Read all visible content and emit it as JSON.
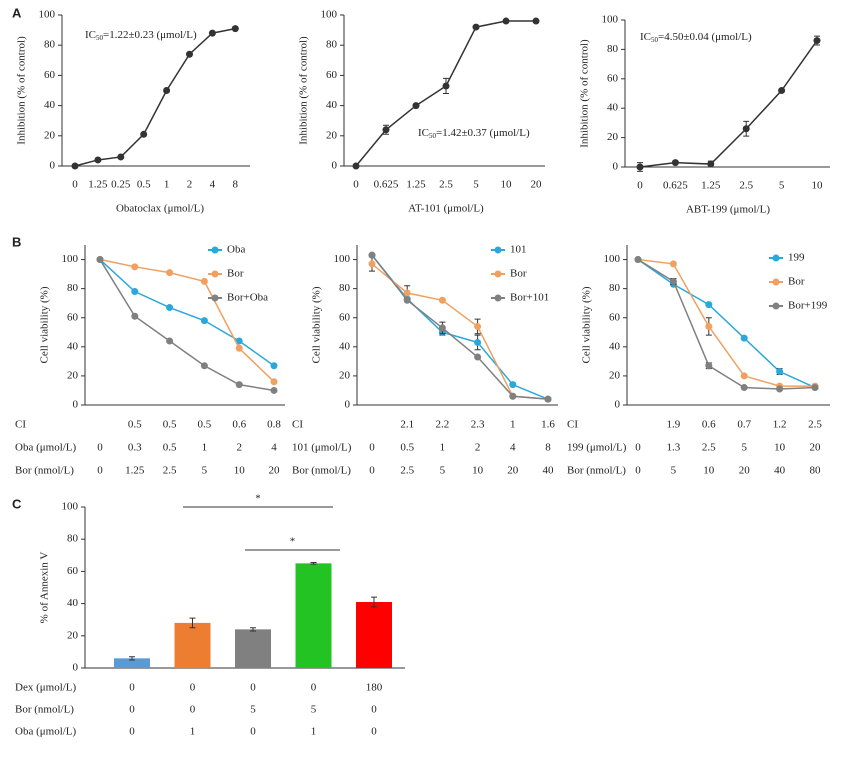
{
  "panels": [
    "A",
    "B",
    "C"
  ],
  "chart_data": [
    {
      "type": "line",
      "xlabel": "Obatoclax (μmol/L)",
      "ylabel": "Inhibition (% of control)",
      "categories": [
        "0",
        "1.25",
        "0.25",
        "0.5",
        "1",
        "2",
        "4",
        "8"
      ],
      "series": [
        {
          "name": null,
          "color": "#333333",
          "values": [
            0,
            4,
            6,
            21,
            50,
            74,
            88,
            91
          ]
        }
      ],
      "ylim": [
        0,
        100
      ],
      "yticks": [
        0,
        20,
        40,
        60,
        80,
        100
      ],
      "annotation": {
        "text": "IC",
        "subscript": "50",
        "suffix": "=1.22±0.23 (μmol/L)"
      }
    },
    {
      "type": "line",
      "xlabel": "AT-101 (μmol/L)",
      "ylabel": "Inhibition (% of control)",
      "categories": [
        "0",
        "0.625",
        "1.25",
        "2.5",
        "5",
        "10",
        "20"
      ],
      "series": [
        {
          "name": null,
          "color": "#333333",
          "values": [
            0,
            24,
            40,
            53,
            92,
            96,
            96
          ],
          "errors": [
            0,
            3,
            0,
            5,
            0,
            0,
            0
          ]
        }
      ],
      "ylim": [
        0,
        100
      ],
      "yticks": [
        0,
        20,
        40,
        60,
        80,
        100
      ],
      "annotation": {
        "text": "IC",
        "subscript": "50",
        "suffix": "=1.42±0.37 (μmol/L)"
      }
    },
    {
      "type": "line",
      "xlabel": "ABT-199 (μmol/L)",
      "ylabel": "Inhibition (% of control)",
      "categories": [
        "0",
        "0.625",
        "1.25",
        "2.5",
        "5",
        "10"
      ],
      "series": [
        {
          "name": null,
          "color": "#333333",
          "values": [
            0,
            3,
            2,
            26,
            52,
            86
          ],
          "errors": [
            3,
            0,
            2,
            5,
            0,
            3
          ]
        }
      ],
      "ylim": [
        0,
        100
      ],
      "yticks": [
        0,
        20,
        40,
        60,
        80,
        100
      ],
      "annotation": {
        "text": "IC",
        "subscript": "50",
        "suffix": "=4.50±0.04 (μmol/L)"
      }
    },
    {
      "type": "line",
      "ylabel": "Cell viability (%)",
      "series": [
        {
          "name": "Oba",
          "color": "#2aa8dc",
          "values": [
            100,
            78,
            67,
            58,
            44,
            27
          ]
        },
        {
          "name": "Bor",
          "color": "#f0a060",
          "values": [
            100,
            95,
            91,
            85,
            39,
            16
          ]
        },
        {
          "name": "Bor+Oba",
          "color": "#808080",
          "values": [
            100,
            61,
            44,
            27,
            14,
            10
          ]
        }
      ],
      "ylim": [
        0,
        110
      ],
      "yticks": [
        0,
        20,
        40,
        60,
        80,
        100
      ],
      "table": [
        {
          "label": "CI",
          "values": [
            null,
            "0.5",
            "0.5",
            "0.5",
            "0.6",
            "0.8"
          ]
        },
        {
          "label": "Oba (μmol/L)",
          "values": [
            "0",
            "0.3",
            "0.5",
            "1",
            "2",
            "4"
          ]
        },
        {
          "label": "Bor (nmol/L)",
          "values": [
            "0",
            "1.25",
            "2.5",
            "5",
            "10",
            "20"
          ]
        }
      ]
    },
    {
      "type": "line",
      "ylabel": "Cell viability (%)",
      "series": [
        {
          "name": "101",
          "color": "#2aa8dc",
          "values": [
            103,
            73,
            50,
            43,
            14,
            4
          ],
          "errors": [
            0,
            0,
            2,
            5,
            0,
            0
          ]
        },
        {
          "name": "Bor",
          "color": "#f0a060",
          "values": [
            97,
            77,
            72,
            54,
            6,
            4
          ],
          "errors": [
            5,
            5,
            0,
            5,
            0,
            0
          ]
        },
        {
          "name": "Bor+101",
          "color": "#808080",
          "values": [
            103,
            72,
            53,
            33,
            6,
            4
          ],
          "errors": [
            0,
            0,
            4,
            0,
            0,
            0
          ]
        }
      ],
      "ylim": [
        0,
        110
      ],
      "yticks": [
        0,
        20,
        40,
        60,
        80,
        100
      ],
      "table": [
        {
          "label": "CI",
          "values": [
            null,
            "2.1",
            "2.2",
            "2.3",
            "1",
            "1.6"
          ]
        },
        {
          "label": "101 (μmol/L)",
          "values": [
            "0",
            "0.5",
            "1",
            "2",
            "4",
            "8"
          ]
        },
        {
          "label": "Bor (nmol/L)",
          "values": [
            "0",
            "2.5",
            "5",
            "10",
            "20",
            "40"
          ]
        }
      ]
    },
    {
      "type": "line",
      "ylabel": "Cell viability (%)",
      "series": [
        {
          "name": "199",
          "color": "#2aa8dc",
          "values": [
            100,
            83,
            69,
            46,
            23,
            12
          ],
          "errors": [
            0,
            0,
            0,
            0,
            2,
            0
          ]
        },
        {
          "name": "Bor",
          "color": "#f0a060",
          "values": [
            100,
            97,
            54,
            20,
            13,
            13
          ],
          "errors": [
            0,
            0,
            6,
            0,
            0,
            0
          ]
        },
        {
          "name": "Bor+199",
          "color": "#808080",
          "values": [
            100,
            85,
            27,
            12,
            11,
            12
          ],
          "errors": [
            0,
            2,
            2,
            0,
            0,
            0
          ]
        }
      ],
      "ylim": [
        0,
        110
      ],
      "yticks": [
        0,
        20,
        40,
        60,
        80,
        100
      ],
      "table": [
        {
          "label": "CI",
          "values": [
            null,
            "1.9",
            "0.6",
            "0.7",
            "1.2",
            "2.5"
          ]
        },
        {
          "label": "199 (μmol/L)",
          "values": [
            "0",
            "1.3",
            "2.5",
            "5",
            "10",
            "20"
          ]
        },
        {
          "label": "Bor (nmol/L)",
          "values": [
            "0",
            "5",
            "10",
            "20",
            "40",
            "80"
          ]
        }
      ]
    },
    {
      "type": "bar",
      "ylabel": "% of Annexin V",
      "values": [
        6,
        28,
        24,
        65,
        41
      ],
      "errors": [
        1,
        3,
        1,
        0.5,
        3
      ],
      "colors": [
        "#5b9bd5",
        "#ed7d31",
        "#808080",
        "#22c322",
        "#ff0000"
      ],
      "ylim": [
        0,
        100
      ],
      "yticks": [
        0,
        20,
        40,
        60,
        80,
        100
      ],
      "significance": [
        "*",
        "*"
      ],
      "table": [
        {
          "label": "Dex (μmol/L)",
          "values": [
            "0",
            "0",
            "0",
            "0",
            "180"
          ]
        },
        {
          "label": "Bor (nmol/L)",
          "values": [
            "0",
            "0",
            "5",
            "5",
            "0"
          ]
        },
        {
          "label": "Oba (μmol/L)",
          "values": [
            "0",
            "1",
            "0",
            "1",
            "0"
          ]
        }
      ]
    }
  ]
}
